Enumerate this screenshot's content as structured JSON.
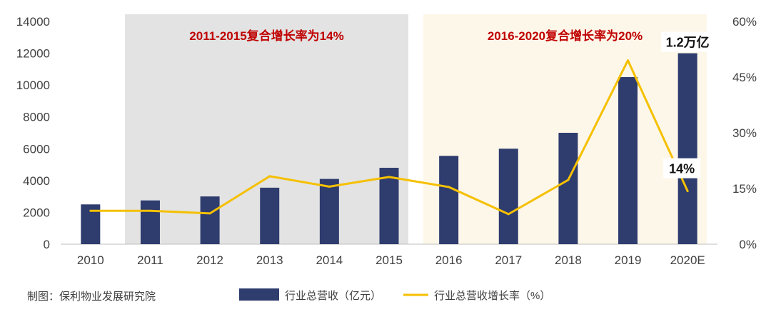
{
  "chart_data": {
    "type": "bar",
    "categories": [
      "2010",
      "2011",
      "2012",
      "2013",
      "2014",
      "2015",
      "2016",
      "2017",
      "2018",
      "2019",
      "2020E"
    ],
    "series": [
      {
        "name": "行业总营收（亿元）",
        "type": "bar",
        "axis": "left",
        "values": [
          2500,
          2750,
          3000,
          3550,
          4100,
          4800,
          5550,
          6000,
          7000,
          10500,
          12000
        ]
      },
      {
        "name": "行业总营收增长率（%）",
        "type": "line",
        "axis": "right",
        "values": [
          9,
          9,
          8.3,
          18.3,
          15.5,
          18.1,
          15.4,
          8.1,
          17.3,
          49.5,
          14.3
        ]
      }
    ],
    "y_left": {
      "min": 0,
      "max": 14000,
      "ticks": [
        "0",
        "2000",
        "4000",
        "6000",
        "8000",
        "10000",
        "12000",
        "14000"
      ]
    },
    "y_right": {
      "min": 0,
      "max": 60,
      "ticks": [
        "0%",
        "15%",
        "30%",
        "45%",
        "60%"
      ]
    },
    "bands": [
      {
        "from": "2011",
        "to": "2015",
        "label": "2011-2015复合增长率为14%",
        "color": "#e3e3e3"
      },
      {
        "from": "2016",
        "to": "2020E",
        "label": "2016-2020复合增长率为20%",
        "color": "#fdf7ea"
      }
    ],
    "annotations": [
      {
        "category": "2020E",
        "series": 0,
        "text": "1.2万亿"
      },
      {
        "category": "2020E",
        "series": 1,
        "text": "14%"
      }
    ],
    "colors": {
      "bar": "#2e3c6e",
      "line": "#f5c000"
    },
    "grid": false,
    "legend_position": "bottom"
  },
  "source_label": "制图：保利物业发展研究院"
}
